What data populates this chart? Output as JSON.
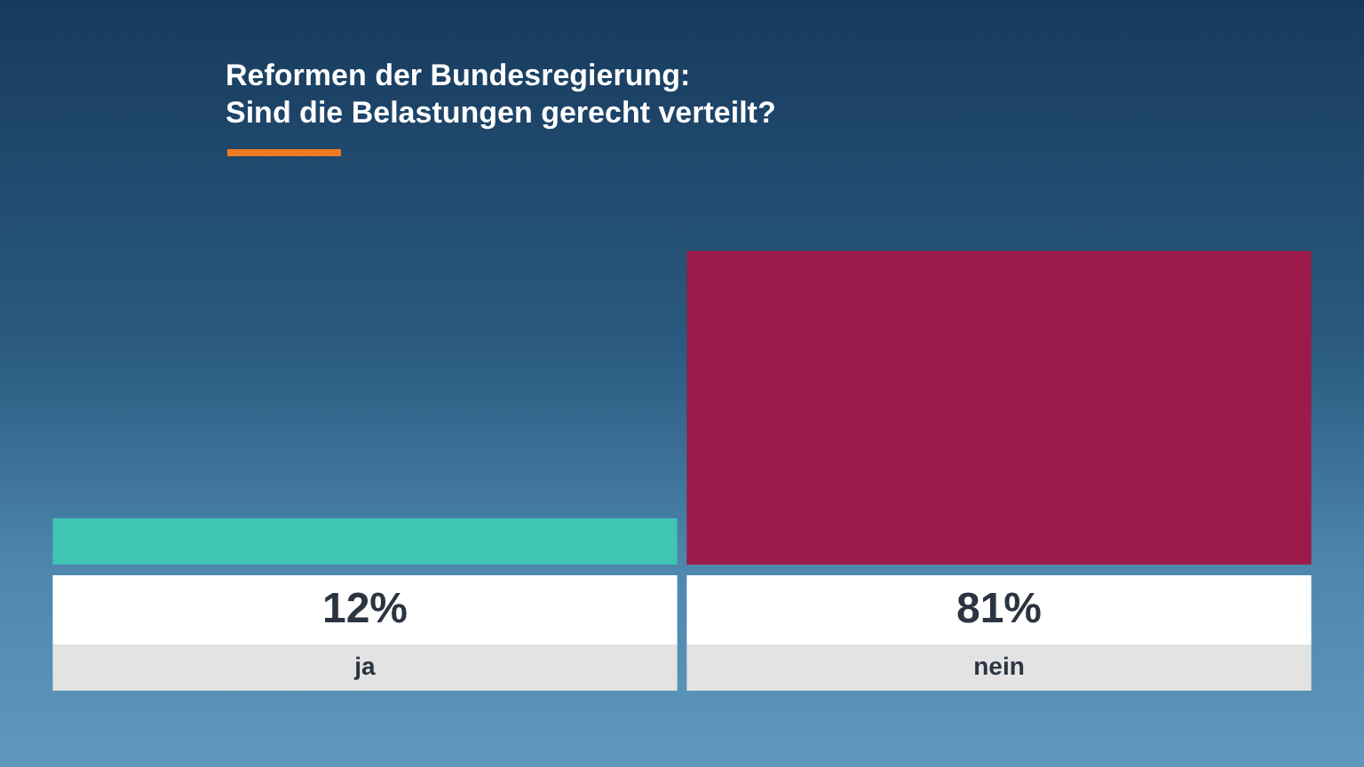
{
  "chart_data": {
    "type": "bar",
    "title": "Reformen der Bundesregierung:\nSind die Belastungen gerecht verteilt?",
    "categories": [
      "ja",
      "nein"
    ],
    "values": [
      12,
      81
    ],
    "colors": [
      "#40c4b4",
      "#9b1a4a"
    ],
    "value_labels": [
      "12%",
      "81%"
    ],
    "legend": false,
    "tick_labels": false
  }
}
